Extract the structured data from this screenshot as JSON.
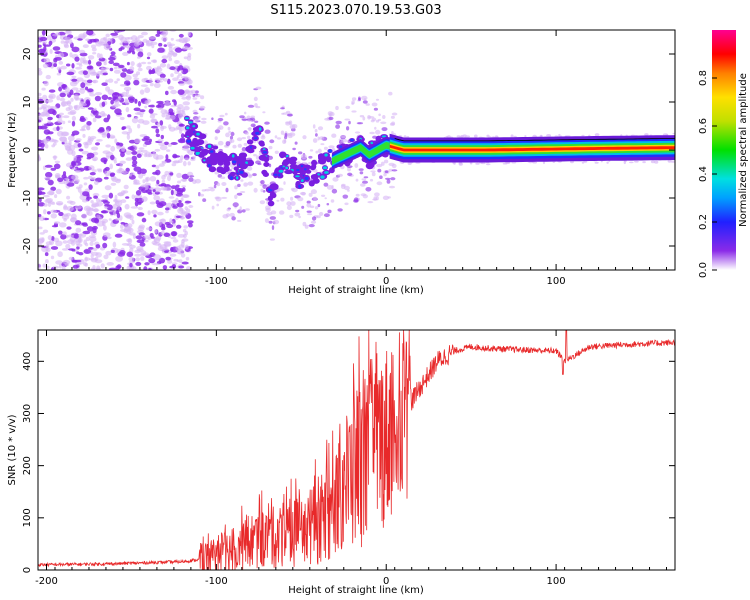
{
  "title": "S115.2023.070.19.53.G03",
  "colors": {
    "snr_line": "#e8292a",
    "spectrogram_scatter": "#8b2be8",
    "spectrogram_scatter_light": "#d7b6f5"
  },
  "chart_data": [
    {
      "type": "heatmap",
      "title": "S115.2023.070.19.53.G03",
      "xlabel": "Height of straight line (km)",
      "ylabel": "Frequency (Hz)",
      "xlim": [
        -205,
        170
      ],
      "ylim": [
        -25,
        25
      ],
      "x_ticks": [
        -200,
        -100,
        0,
        100
      ],
      "y_ticks": [
        -20,
        -10,
        0,
        10,
        20
      ],
      "colorbar": {
        "label": "Normalized spectral amplitude",
        "range": [
          0.0,
          1.0
        ],
        "ticks": [
          0.0,
          0.2,
          0.4,
          0.6,
          0.8
        ]
      },
      "dominant_trace": {
        "description_points": [
          {
            "x": -118,
            "y": 4.5
          },
          {
            "x": -105,
            "y": -1
          },
          {
            "x": -95,
            "y": -3
          },
          {
            "x": -85,
            "y": -4
          },
          {
            "x": -75,
            "y": 3.5
          },
          {
            "x": -68,
            "y": -9
          },
          {
            "x": -60,
            "y": -1
          },
          {
            "x": -52,
            "y": -6
          },
          {
            "x": -45,
            "y": -5
          },
          {
            "x": -30,
            "y": -2
          },
          {
            "x": -15,
            "y": 0.5
          },
          {
            "x": -10,
            "y": -1
          },
          {
            "x": 0,
            "y": 1
          },
          {
            "x": 10,
            "y": 0
          },
          {
            "x": 60,
            "y": 0
          },
          {
            "x": 120,
            "y": 0.3
          },
          {
            "x": 170,
            "y": 0.5
          }
        ]
      }
    },
    {
      "type": "line",
      "xlabel": "Height of straight line (km)",
      "ylabel": "SNR (10 * v/v)",
      "xlim": [
        -205,
        170
      ],
      "ylim": [
        0,
        460
      ],
      "x_ticks": [
        -200,
        -100,
        0,
        100
      ],
      "y_ticks": [
        0,
        100,
        200,
        300,
        400
      ],
      "series": [
        {
          "name": "SNR",
          "x": [
            -205,
            -180,
            -160,
            -140,
            -120,
            -110,
            -100,
            -90,
            -80,
            -70,
            -60,
            -50,
            -40,
            -30,
            -20,
            -10,
            0,
            10,
            20,
            30,
            40,
            50,
            60,
            80,
            100,
            105,
            120,
            140,
            160,
            170
          ],
          "values": [
            10,
            11,
            12,
            14,
            16,
            20,
            30,
            40,
            55,
            60,
            65,
            75,
            90,
            130,
            190,
            230,
            260,
            300,
            350,
            400,
            420,
            428,
            425,
            422,
            420,
            400,
            428,
            432,
            435,
            436
          ]
        }
      ]
    }
  ]
}
